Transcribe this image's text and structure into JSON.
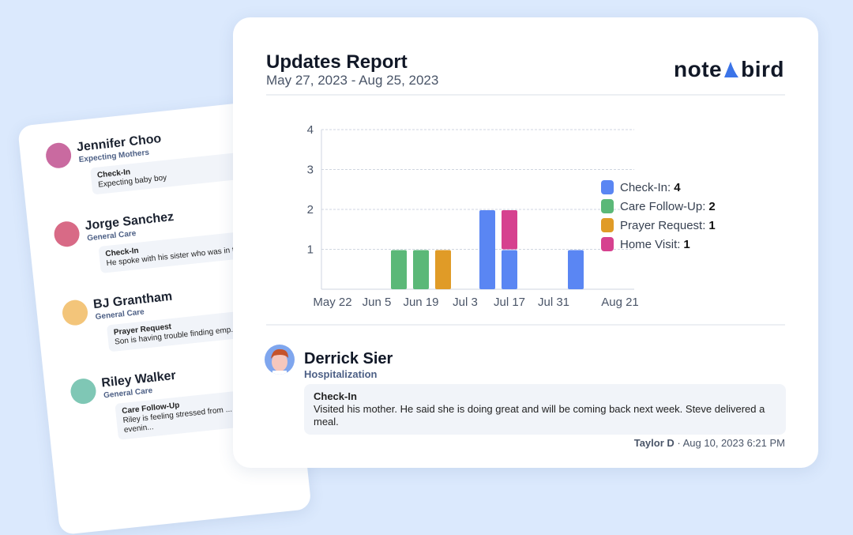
{
  "back_card": {
    "people": [
      {
        "name": "Jennifer Choo",
        "group": "Expecting Mothers",
        "note_type": "Check-In",
        "note": "Expecting baby boy",
        "avatar_color": "#c96aa0"
      },
      {
        "name": "Jorge Sanchez",
        "group": "General Care",
        "note_type": "Check-In",
        "note": "He spoke with his sister who was in the ... spirits.",
        "avatar_color": "#d86a86"
      },
      {
        "name": "BJ Grantham",
        "group": "General Care",
        "note_type": "Prayer Request",
        "note": "Son is having trouble finding emp...",
        "avatar_color": "#f3c57a"
      },
      {
        "name": "Riley Walker",
        "group": "General Care",
        "note_type": "Care Follow-Up",
        "note": "Riley is feeling stressed from ... calling her family in the evenin...",
        "avatar_color": "#7fc7b5"
      }
    ]
  },
  "report": {
    "title": "Updates Report",
    "date_range": "May 27, 2023 - Aug 25, 2023",
    "logo_text_left": "note",
    "logo_text_right": "bird"
  },
  "chart_data": {
    "type": "bar",
    "stacked": true,
    "x_ticks": [
      "May 22",
      "Jun 5",
      "Jun 19",
      "Jul 3",
      "Jul 17",
      "Jul 31",
      "Aug 21"
    ],
    "y_ticks": [
      1,
      2,
      3,
      4
    ],
    "ylim": [
      0,
      4
    ],
    "grid": true,
    "legend_placement": "right",
    "series": [
      {
        "name": "Check-In",
        "total": 4,
        "color": "#5a86f3",
        "points": [
          {
            "x": "Jul 10",
            "y": 2
          },
          {
            "x": "Jul 17",
            "y": 1
          },
          {
            "x": "Aug 7",
            "y": 1
          }
        ]
      },
      {
        "name": "Care Follow-Up",
        "total": 2,
        "color": "#5bb878",
        "points": [
          {
            "x": "Jun 12",
            "y": 1
          },
          {
            "x": "Jun 19",
            "y": 1
          }
        ]
      },
      {
        "name": "Prayer Request",
        "total": 1,
        "color": "#e09b27",
        "points": [
          {
            "x": "Jun 26",
            "y": 1
          }
        ]
      },
      {
        "name": "Home Visit",
        "total": 1,
        "color": "#d6418f",
        "points": [
          {
            "x": "Jul 17",
            "y": 1
          }
        ]
      }
    ]
  },
  "update": {
    "name": "Derrick Sier",
    "group": "Hospitalization",
    "note_type": "Check-In",
    "note": "Visited his mother. He said she is doing great and will be coming back next week. Steve delivered a meal.",
    "author": "Taylor D",
    "timestamp": "Aug 10, 2023 6:21 PM"
  }
}
